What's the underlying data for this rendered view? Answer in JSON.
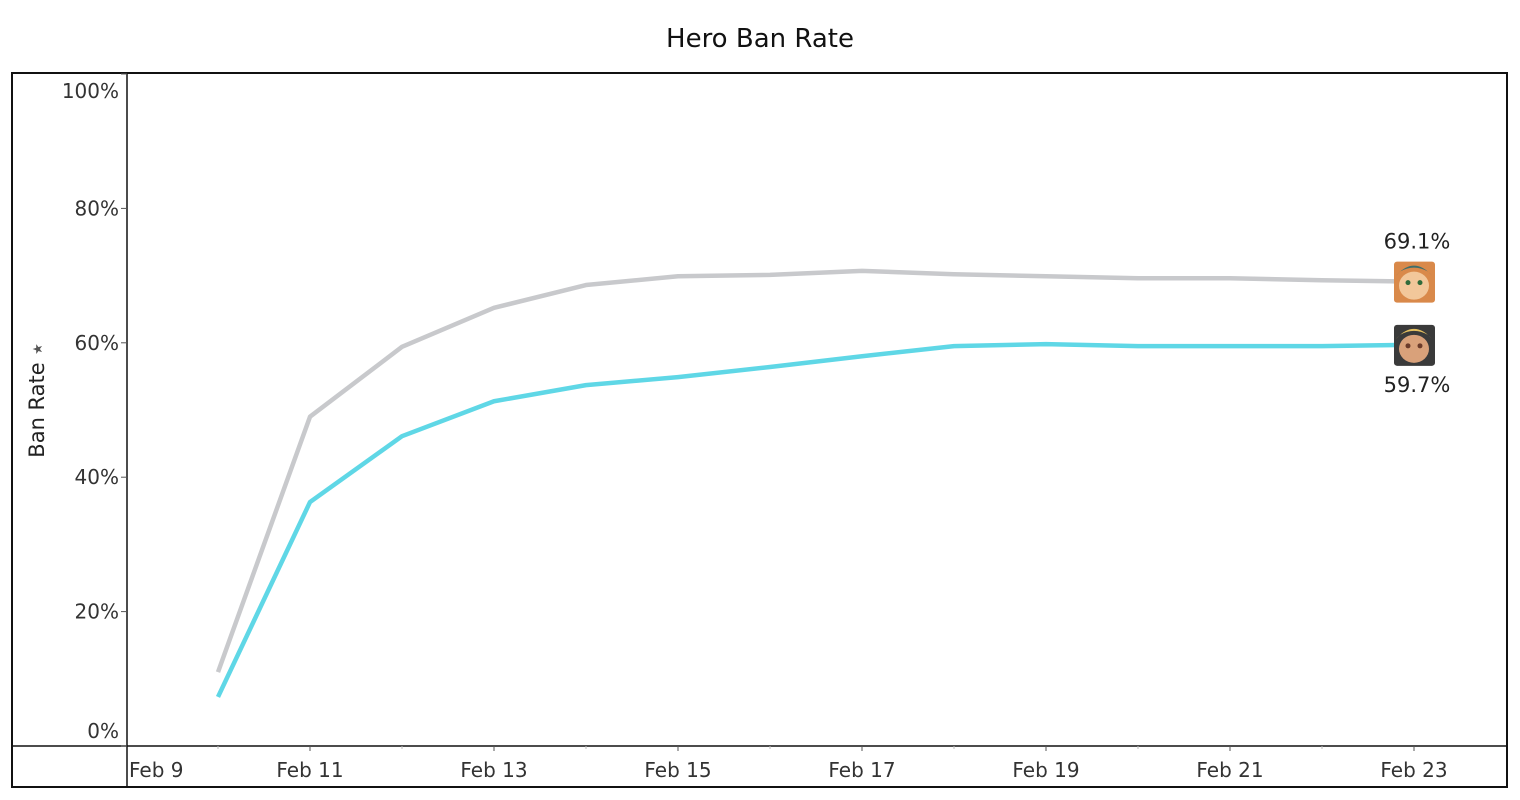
{
  "chart_data": {
    "type": "line",
    "title": "Hero Ban Rate",
    "xlabel": "",
    "ylabel": "Ban Rate",
    "ylim": [
      0,
      100
    ],
    "y_ticks": [
      "0%",
      "20%",
      "40%",
      "60%",
      "80%",
      "100%"
    ],
    "x_ticks": [
      "Feb 9",
      "Feb 11",
      "Feb 13",
      "Feb 15",
      "Feb 17",
      "Feb 19",
      "Feb 21",
      "Feb 23"
    ],
    "x": [
      "Feb 10",
      "Feb 11",
      "Feb 12",
      "Feb 13",
      "Feb 14",
      "Feb 15",
      "Feb 16",
      "Feb 17",
      "Feb 18",
      "Feb 19",
      "Feb 20",
      "Feb 21",
      "Feb 22",
      "Feb 23"
    ],
    "grid": false,
    "series": [
      {
        "color": "#c8c9cc",
        "icon": "orange-cat-hero-avatar",
        "end_label": "69.1%",
        "values": [
          11.0,
          49.0,
          59.4,
          65.2,
          68.6,
          69.9,
          70.1,
          70.7,
          70.2,
          69.9,
          69.6,
          69.6,
          69.3,
          69.1
        ]
      },
      {
        "color": "#5fd7e6",
        "icon": "blonde-hero-avatar",
        "end_label": "59.7%",
        "values": [
          7.3,
          36.3,
          46.1,
          51.3,
          53.7,
          54.9,
          56.4,
          58.0,
          59.5,
          59.8,
          59.5,
          59.5,
          59.5,
          59.7
        ]
      }
    ]
  }
}
